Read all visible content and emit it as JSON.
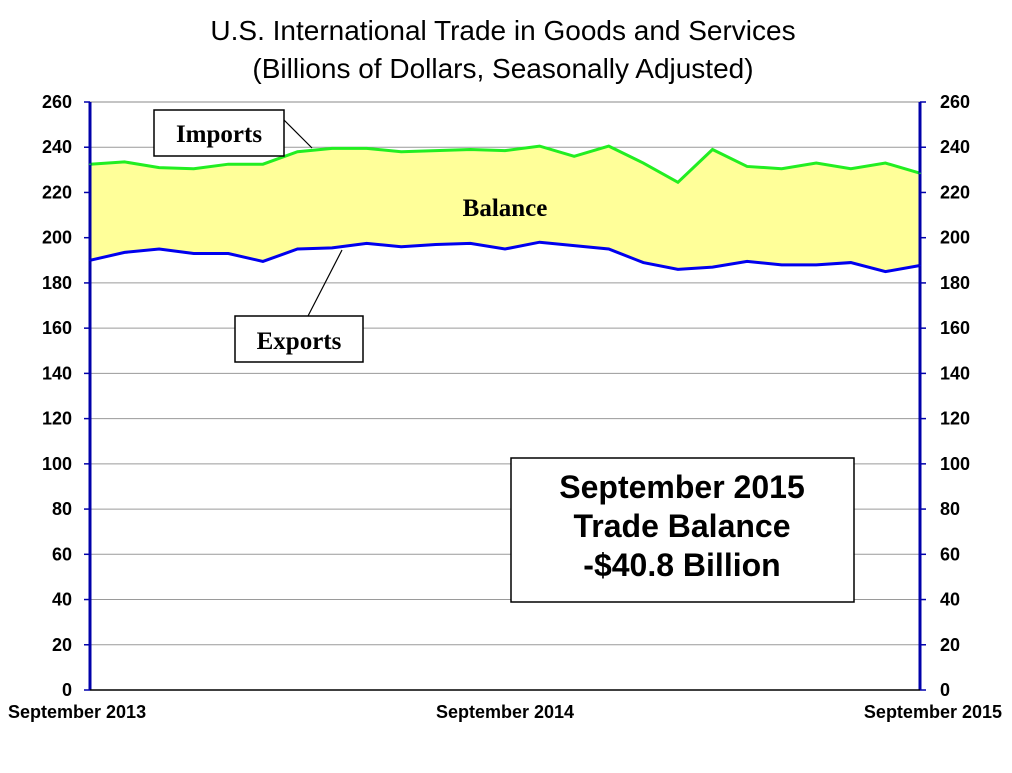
{
  "chart_data": {
    "type": "area",
    "title": "U.S. International Trade in Goods and Services",
    "subtitle": "(Billions of Dollars, Seasonally Adjusted)",
    "ylim": [
      0,
      260
    ],
    "y_ticks": [
      "0",
      "20",
      "40",
      "60",
      "80",
      "100",
      "120",
      "140",
      "160",
      "180",
      "200",
      "220",
      "240",
      "260"
    ],
    "x_tick_labels": [
      "September 2013",
      "September 2014",
      "September 2015"
    ],
    "x": [
      "Sep 2013",
      "Oct 2013",
      "Nov 2013",
      "Dec 2013",
      "Jan 2014",
      "Feb 2014",
      "Mar 2014",
      "Apr 2014",
      "May 2014",
      "Jun 2014",
      "Jul 2014",
      "Aug 2014",
      "Sep 2014",
      "Oct 2014",
      "Nov 2014",
      "Dec 2014",
      "Jan 2015",
      "Feb 2015",
      "Mar 2015",
      "Apr 2015",
      "May 2015",
      "Jun 2015",
      "Jul 2015",
      "Aug 2015",
      "Sep 2015"
    ],
    "series": [
      {
        "name": "Imports",
        "color": "#22ee22",
        "values": [
          232.5,
          233.5,
          231,
          230.5,
          232.5,
          232.5,
          238,
          239.5,
          239.5,
          238,
          238.5,
          239,
          238.5,
          240.5,
          236,
          240.5,
          233,
          224.5,
          239,
          231.5,
          230.5,
          233,
          230.5,
          233,
          228.5
        ]
      },
      {
        "name": "Exports",
        "color": "#0000ee",
        "values": [
          190,
          193.5,
          195,
          193,
          193,
          189.5,
          195,
          195.5,
          197.5,
          196,
          197,
          197.5,
          195,
          198,
          196.5,
          195,
          189,
          186,
          187,
          189.5,
          188,
          188,
          189,
          185,
          187.7
        ]
      }
    ],
    "fill_between_label": "Balance",
    "fill_color": "#ffff99",
    "annotation": {
      "line1": "September 2015",
      "line2": "Trade Balance",
      "line3": "-$40.8 Billion"
    },
    "grid": true,
    "axis_colors": {
      "left": "#0000aa",
      "right": "#0000aa"
    }
  }
}
